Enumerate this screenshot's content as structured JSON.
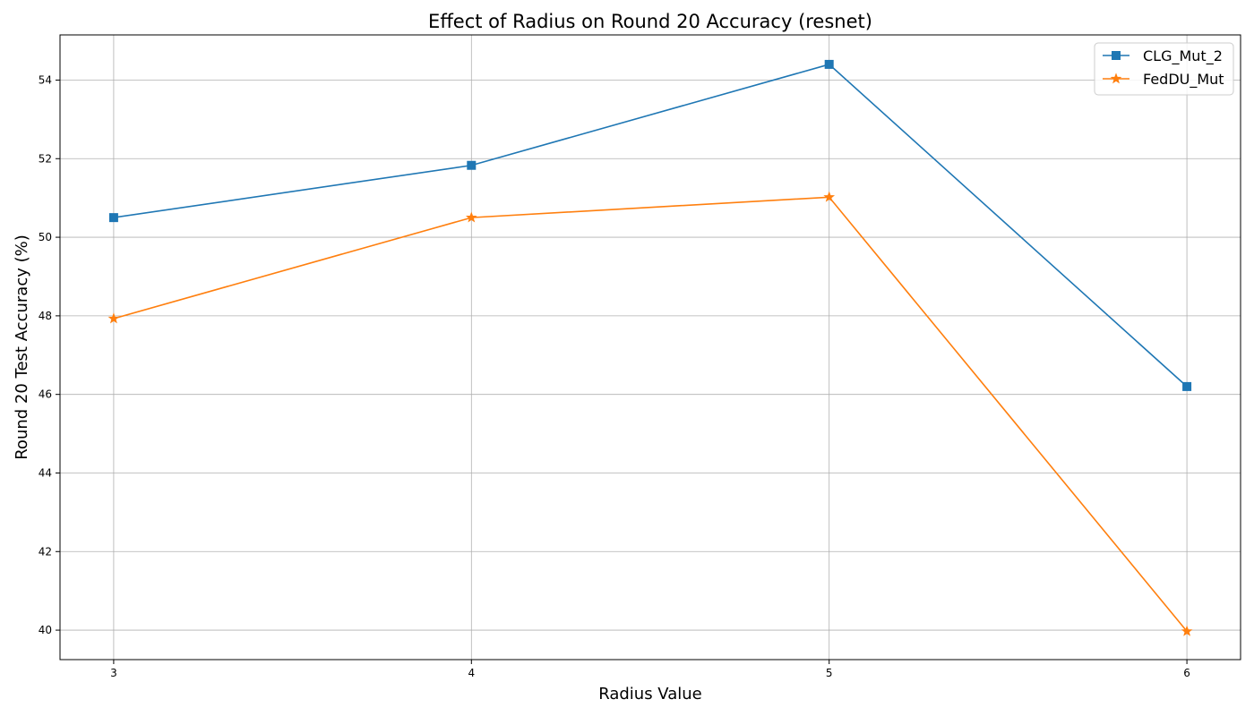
{
  "chart_data": {
    "type": "line",
    "title": "Effect of Radius on Round 20 Accuracy (resnet)",
    "xlabel": "Radius Value",
    "ylabel": "Round 20 Test Accuracy (%)",
    "x": [
      3,
      4,
      5,
      6
    ],
    "x_tick_labels": [
      "3",
      "4",
      "5",
      "6"
    ],
    "xlim": [
      2.85,
      6.15
    ],
    "ylim": [
      39.25,
      55.15
    ],
    "y_ticks": [
      40,
      42,
      44,
      46,
      48,
      50,
      52,
      54
    ],
    "y_tick_labels": [
      "40",
      "42",
      "44",
      "46",
      "48",
      "50",
      "52",
      "54"
    ],
    "grid": true,
    "legend_position": "top-right",
    "series": [
      {
        "name": "CLG_Mut_2",
        "values": [
          50.5,
          51.83,
          54.4,
          46.2
        ],
        "color": "#1f77b4",
        "marker": "square"
      },
      {
        "name": "FedDU_Mut",
        "values": [
          47.93,
          50.5,
          51.02,
          39.97
        ],
        "color": "#ff7f0e",
        "marker": "star"
      }
    ]
  }
}
